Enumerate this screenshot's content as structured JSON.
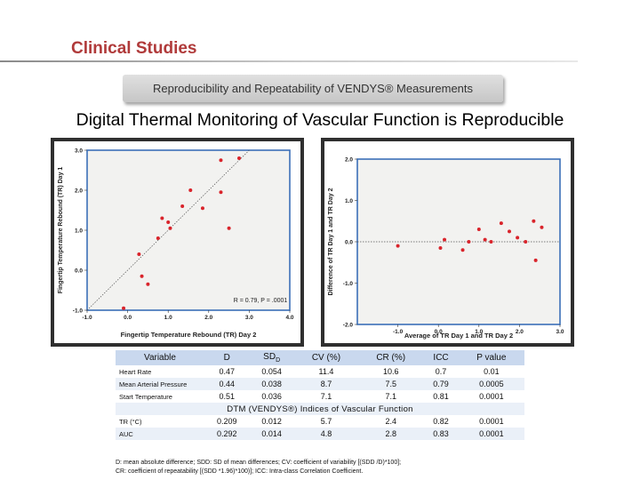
{
  "header": {
    "title": "Clinical Studies",
    "banner": "Reproducibility and Repeatability of VENDYS® Measurements",
    "subtitle": "Digital Thermal Monitoring of Vascular Function is Reproducible"
  },
  "colors": {
    "title_red": "#b03a3a",
    "plot_bg": "#f2f2f0",
    "frame_blue": "#3b6fb8",
    "point_red": "#d9242b",
    "table_header": "#c9d8ee"
  },
  "chart_data": [
    {
      "type": "scatter",
      "name": "correlation",
      "xlabel": "Fingertip Temperature Rebound (TR) Day 2",
      "ylabel": "Fingertip Temperature Rebound (TR) Day 1",
      "xlim": [
        -1.0,
        4.0
      ],
      "ylim": [
        -1.0,
        3.0
      ],
      "x_ticks": [
        "-1.0",
        "0.0",
        "1.0",
        "2.0",
        "3.0",
        "4.0"
      ],
      "y_ticks": [
        "-1.0",
        "0.0",
        "1.0",
        "2.0",
        "3.0"
      ],
      "annotation": "R = 0.79, P = .0001",
      "points": [
        {
          "x": -0.1,
          "y": -0.95
        },
        {
          "x": 0.35,
          "y": -0.15
        },
        {
          "x": 0.5,
          "y": -0.35
        },
        {
          "x": 0.28,
          "y": 0.4
        },
        {
          "x": 0.75,
          "y": 0.8
        },
        {
          "x": 0.85,
          "y": 1.3
        },
        {
          "x": 1.0,
          "y": 1.2
        },
        {
          "x": 1.05,
          "y": 1.05
        },
        {
          "x": 1.35,
          "y": 1.6
        },
        {
          "x": 1.55,
          "y": 2.0
        },
        {
          "x": 1.85,
          "y": 1.55
        },
        {
          "x": 2.3,
          "y": 1.95
        },
        {
          "x": 2.5,
          "y": 1.05
        },
        {
          "x": 2.3,
          "y": 2.75
        },
        {
          "x": 2.75,
          "y": 2.8
        }
      ]
    },
    {
      "type": "scatter",
      "name": "bland-altman",
      "xlabel": "Average of TR Day 1 and TR Day 2",
      "ylabel": "Difference of TR Day 1 and TR Day 2",
      "xlim": [
        -2.0,
        3.0
      ],
      "ylim": [
        -2.0,
        2.0
      ],
      "x_ticks": [
        "-1.0",
        "0.0",
        "1.0",
        "2.0",
        "3.0"
      ],
      "y_ticks": [
        "-2.0",
        "-1.0",
        "0.0",
        "1.0",
        "2.0"
      ],
      "points": [
        {
          "x": -1.0,
          "y": -0.1
        },
        {
          "x": 0.05,
          "y": -0.15
        },
        {
          "x": 0.15,
          "y": 0.05
        },
        {
          "x": 0.6,
          "y": -0.2
        },
        {
          "x": 0.75,
          "y": 0.0
        },
        {
          "x": 1.0,
          "y": 0.3
        },
        {
          "x": 1.15,
          "y": 0.05
        },
        {
          "x": 1.3,
          "y": 0.0
        },
        {
          "x": 1.55,
          "y": 0.45
        },
        {
          "x": 1.75,
          "y": 0.25
        },
        {
          "x": 1.95,
          "y": 0.1
        },
        {
          "x": 2.35,
          "y": 0.5
        },
        {
          "x": 2.4,
          "y": -0.45
        },
        {
          "x": 2.55,
          "y": 0.35
        },
        {
          "x": 2.15,
          "y": 0.0
        }
      ]
    }
  ],
  "table": {
    "headers": [
      "Variable",
      "D",
      "SDD",
      "CV (%)",
      "CR (%)",
      "ICC",
      "P value"
    ],
    "header_main_sd": "SD",
    "header_sub_sd": "D",
    "rows": [
      {
        "label": "Heart Rate",
        "values": [
          "0.47",
          "0.054",
          "11.4",
          "10.6",
          "0.7",
          "0.01"
        ]
      },
      {
        "label": "Mean Arterial Pressure",
        "values": [
          "0.44",
          "0.038",
          "8.7",
          "7.5",
          "0.79",
          "0.0005"
        ]
      },
      {
        "label": "Start Temperature",
        "values": [
          "0.51",
          "0.036",
          "7.1",
          "7.1",
          "0.81",
          "0.0001"
        ]
      }
    ],
    "section_title": "DTM (VENDYS®) Indices of Vascular Function",
    "section_rows": [
      {
        "label": "TR (°C)",
        "values": [
          "0.209",
          "0.012",
          "5.7",
          "2.4",
          "0.82",
          "0.0001"
        ]
      },
      {
        "label": "AUC",
        "values": [
          "0.292",
          "0.014",
          "4.8",
          "2.8",
          "0.83",
          "0.0001"
        ]
      }
    ]
  },
  "footnote": {
    "line1": "D: mean absolute difference; SDD: SD of mean differences; CV: coefficient of variability [(SDD /D)*100];",
    "line2": "CR: coefficient of repeatability [(SDD *1.96)*100)]; ICC: Intra-class Correlation Coefficient."
  }
}
